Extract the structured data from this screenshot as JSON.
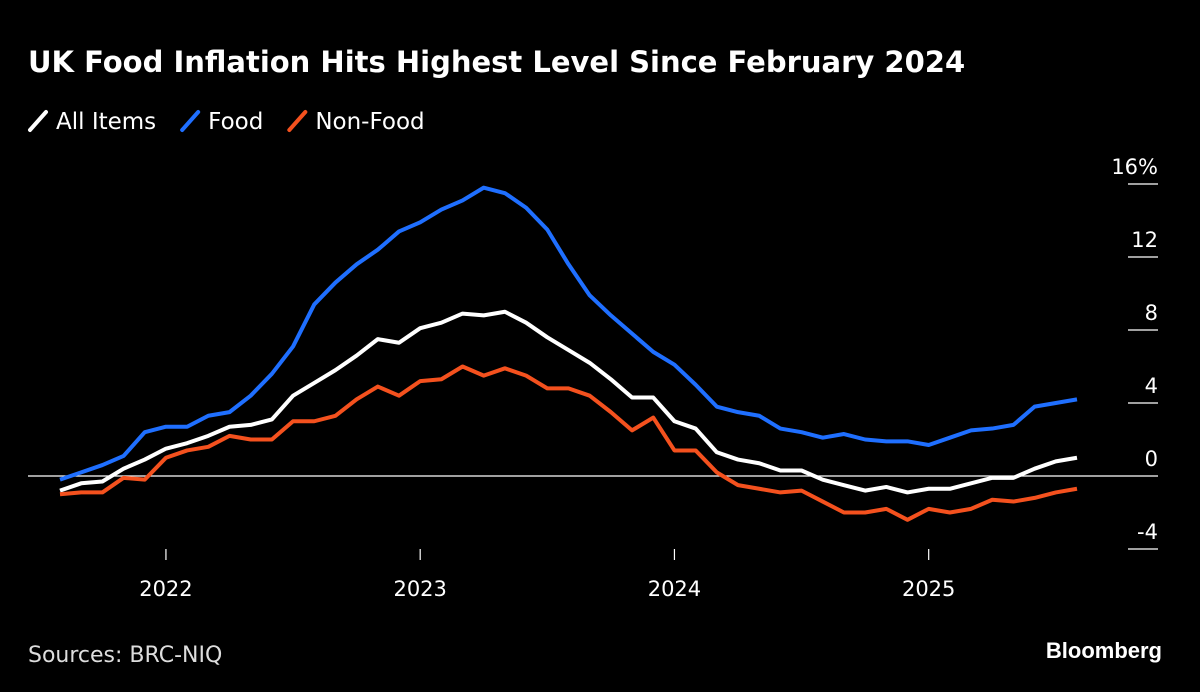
{
  "chart_data": {
    "type": "line",
    "title": "UK Food Inflation Hits Highest Level Since February 2024",
    "source": "Sources: BRC-NIQ",
    "brand": "Bloomberg",
    "x": [
      "2021-08",
      "2021-09",
      "2021-10",
      "2021-11",
      "2021-12",
      "2022-01",
      "2022-02",
      "2022-03",
      "2022-04",
      "2022-05",
      "2022-06",
      "2022-07",
      "2022-08",
      "2022-09",
      "2022-10",
      "2022-11",
      "2022-12",
      "2023-01",
      "2023-02",
      "2023-03",
      "2023-04",
      "2023-05",
      "2023-06",
      "2023-07",
      "2023-08",
      "2023-09",
      "2023-10",
      "2023-11",
      "2023-12",
      "2024-01",
      "2024-02",
      "2024-03",
      "2024-04",
      "2024-05",
      "2024-06",
      "2024-07",
      "2024-08",
      "2024-09",
      "2024-10",
      "2024-11",
      "2024-12",
      "2025-01",
      "2025-02",
      "2025-03",
      "2025-04",
      "2025-05",
      "2025-06",
      "2025-07",
      "2025-08"
    ],
    "series": [
      {
        "name": "All Items",
        "color": "#ffffff",
        "values": [
          -0.8,
          -0.4,
          -0.3,
          0.4,
          0.9,
          1.5,
          1.8,
          2.2,
          2.7,
          2.8,
          3.1,
          4.4,
          5.1,
          5.8,
          6.6,
          7.5,
          7.3,
          8.1,
          8.4,
          8.9,
          8.8,
          9.0,
          8.4,
          7.6,
          6.9,
          6.2,
          5.3,
          4.3,
          4.3,
          3.0,
          2.6,
          1.3,
          0.9,
          0.7,
          0.3,
          0.3,
          -0.2,
          -0.5,
          -0.8,
          -0.6,
          -0.9,
          -0.7,
          -0.7,
          -0.4,
          -0.1,
          -0.1,
          0.4,
          0.8,
          1.0
        ]
      },
      {
        "name": "Food",
        "color": "#1f6fff",
        "values": [
          -0.2,
          0.2,
          0.6,
          1.1,
          2.4,
          2.7,
          2.7,
          3.3,
          3.5,
          4.4,
          5.6,
          7.1,
          9.4,
          10.6,
          11.6,
          12.4,
          13.4,
          13.9,
          14.6,
          15.1,
          15.8,
          15.5,
          14.7,
          13.5,
          11.6,
          9.9,
          8.8,
          7.8,
          6.8,
          6.1,
          5.0,
          3.8,
          3.5,
          3.3,
          2.6,
          2.4,
          2.1,
          2.3,
          2.0,
          1.9,
          1.9,
          1.7,
          2.1,
          2.5,
          2.6,
          2.8,
          3.8,
          4.0,
          4.2
        ]
      },
      {
        "name": "Non-Food",
        "color": "#f4511e",
        "values": [
          -1.0,
          -0.9,
          -0.9,
          -0.1,
          -0.2,
          1.0,
          1.4,
          1.6,
          2.2,
          2.0,
          2.0,
          3.0,
          3.0,
          3.3,
          4.2,
          4.9,
          4.4,
          5.2,
          5.3,
          6.0,
          5.5,
          5.9,
          5.5,
          4.8,
          4.8,
          4.4,
          3.5,
          2.5,
          3.2,
          1.4,
          1.4,
          0.2,
          -0.5,
          -0.7,
          -0.9,
          -0.8,
          -1.4,
          -2.0,
          -2.0,
          -1.8,
          -2.4,
          -1.8,
          -2.0,
          -1.8,
          -1.3,
          -1.4,
          -1.2,
          -0.9,
          -0.7
        ]
      }
    ],
    "xlim": [
      "2021-08",
      "2025-08"
    ],
    "xticks": [
      {
        "value": "2022-01",
        "label": "2022"
      },
      {
        "value": "2023-01",
        "label": "2023"
      },
      {
        "value": "2024-01",
        "label": "2024"
      },
      {
        "value": "2025-01",
        "label": "2025"
      }
    ],
    "ylim": [
      -4,
      16
    ],
    "yticks": [
      {
        "value": 16,
        "label": "16%"
      },
      12,
      8,
      4,
      0,
      -4
    ],
    "legend": "top-left"
  }
}
